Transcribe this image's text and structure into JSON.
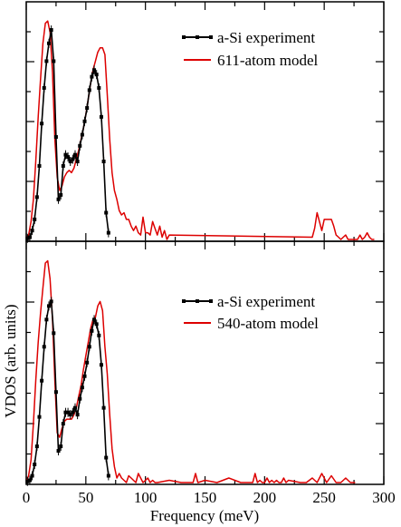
{
  "chart_data": [
    {
      "type": "line",
      "panel": "top",
      "xlabel": "",
      "ylabel": "",
      "xlim": [
        0,
        300
      ],
      "ylim": [
        0,
        1
      ],
      "xticks": [
        0,
        50,
        100,
        150,
        200,
        250,
        300
      ],
      "show_xtick_labels": false,
      "show_ytick_labels": false,
      "legend": "top-right",
      "series": [
        {
          "name": "a-Si experiment",
          "color": "#000000",
          "markers": true,
          "x": [
            1,
            3,
            5,
            7,
            9,
            11,
            13,
            15,
            17,
            19,
            21,
            23,
            25,
            27,
            29,
            31,
            33,
            35,
            37,
            39,
            41,
            43,
            45,
            47,
            49,
            51,
            53,
            55,
            57,
            59,
            61,
            63,
            65,
            67,
            69
          ],
          "y": [
            0.005,
            0.01,
            0.04,
            0.09,
            0.19,
            0.33,
            0.52,
            0.68,
            0.8,
            0.88,
            0.94,
            0.8,
            0.46,
            0.18,
            0.2,
            0.33,
            0.38,
            0.37,
            0.35,
            0.36,
            0.38,
            0.35,
            0.42,
            0.47,
            0.53,
            0.59,
            0.67,
            0.73,
            0.76,
            0.74,
            0.68,
            0.55,
            0.35,
            0.12,
            0.03
          ]
        },
        {
          "name": "611-atom model",
          "color": "#dd0000",
          "markers": false,
          "x": [
            0,
            2,
            4,
            6,
            8,
            10,
            12,
            14,
            16,
            18,
            20,
            22,
            24,
            26,
            28,
            30,
            32,
            34,
            36,
            38,
            40,
            42,
            44,
            46,
            48,
            50,
            52,
            54,
            56,
            58,
            60,
            62,
            64,
            66,
            68,
            70,
            72,
            74,
            76,
            78,
            80,
            82,
            84,
            86,
            88,
            90,
            92,
            94,
            96,
            98,
            100,
            102,
            104,
            106,
            108,
            110,
            112,
            114,
            116,
            118,
            120,
            240,
            242,
            244,
            246,
            248,
            250,
            252,
            254,
            256,
            258,
            260,
            262,
            264,
            266,
            268,
            270,
            272,
            274,
            276,
            278,
            280,
            282,
            284,
            286,
            288,
            290,
            292
          ],
          "y": [
            0.005,
            0.02,
            0.08,
            0.18,
            0.35,
            0.55,
            0.72,
            0.88,
            0.97,
            0.98,
            0.93,
            0.75,
            0.45,
            0.28,
            0.22,
            0.24,
            0.28,
            0.3,
            0.31,
            0.3,
            0.32,
            0.36,
            0.4,
            0.45,
            0.5,
            0.56,
            0.63,
            0.7,
            0.76,
            0.8,
            0.84,
            0.86,
            0.86,
            0.83,
            0.65,
            0.45,
            0.3,
            0.22,
            0.18,
            0.13,
            0.11,
            0.12,
            0.09,
            0.09,
            0.06,
            0.04,
            0.06,
            0.03,
            0.02,
            0.1,
            0.03,
            0.03,
            0.02,
            0.08,
            0.05,
            0.02,
            0.06,
            0.01,
            0.04,
            0.0,
            0.02,
            0.01,
            0.05,
            0.12,
            0.08,
            0.04,
            0.09,
            0.09,
            0.09,
            0.09,
            0.06,
            0.02,
            0.01,
            0.0,
            0.01,
            0.02,
            0.0,
            0.0,
            0.0,
            0.0,
            0.0,
            0.02,
            0.0,
            0.01,
            0.03,
            0.01,
            0.0,
            0.0
          ]
        }
      ]
    },
    {
      "type": "line",
      "panel": "bottom",
      "xlabel": "Frequency (meV)",
      "ylabel": "VDOS (arb. units)",
      "xlim": [
        0,
        300
      ],
      "ylim": [
        0,
        1
      ],
      "xticks": [
        0,
        50,
        100,
        150,
        200,
        250,
        300
      ],
      "xtick_labels": [
        "0",
        "50",
        "100",
        "150",
        "200",
        "250",
        "300"
      ],
      "show_ytick_labels": false,
      "legend": "right",
      "series": [
        {
          "name": "a-Si experiment",
          "color": "#000000",
          "markers": true,
          "x": [
            1,
            3,
            5,
            7,
            9,
            11,
            13,
            15,
            17,
            19,
            21,
            23,
            25,
            27,
            29,
            31,
            33,
            35,
            37,
            39,
            41,
            43,
            45,
            47,
            49,
            51,
            53,
            55,
            57,
            59,
            61,
            63,
            65,
            67,
            69
          ],
          "y": [
            0.005,
            0.01,
            0.03,
            0.08,
            0.16,
            0.29,
            0.45,
            0.6,
            0.72,
            0.78,
            0.8,
            0.66,
            0.4,
            0.14,
            0.16,
            0.26,
            0.31,
            0.31,
            0.3,
            0.31,
            0.33,
            0.3,
            0.37,
            0.42,
            0.47,
            0.53,
            0.6,
            0.67,
            0.72,
            0.7,
            0.65,
            0.52,
            0.33,
            0.11,
            0.03
          ]
        },
        {
          "name": "540-atom model",
          "color": "#dd0000",
          "markers": false,
          "x": [
            0,
            2,
            4,
            6,
            8,
            10,
            12,
            14,
            16,
            18,
            20,
            22,
            24,
            26,
            28,
            30,
            32,
            34,
            36,
            38,
            40,
            42,
            44,
            46,
            48,
            50,
            52,
            54,
            56,
            58,
            60,
            62,
            64,
            66,
            68,
            70,
            72,
            74,
            76,
            78,
            80,
            82,
            84,
            86,
            88,
            90,
            92,
            94,
            96,
            98,
            100,
            102,
            104,
            106,
            108,
            110,
            120,
            130,
            140,
            142,
            144,
            150,
            160,
            170,
            180,
            190,
            192,
            194,
            196,
            198,
            200,
            202,
            204,
            206,
            208,
            210,
            212,
            214,
            216,
            218,
            220,
            230,
            235,
            240,
            244,
            248,
            252,
            256,
            260,
            264,
            268,
            272,
            276
          ],
          "y": [
            0.005,
            0.03,
            0.1,
            0.26,
            0.45,
            0.62,
            0.75,
            0.86,
            0.97,
            0.98,
            0.9,
            0.72,
            0.45,
            0.22,
            0.2,
            0.24,
            0.27,
            0.28,
            0.28,
            0.28,
            0.3,
            0.33,
            0.38,
            0.43,
            0.5,
            0.56,
            0.62,
            0.68,
            0.72,
            0.73,
            0.78,
            0.8,
            0.76,
            0.6,
            0.48,
            0.3,
            0.15,
            0.07,
            0.02,
            0.04,
            0.02,
            0.01,
            0.0,
            0.03,
            0.02,
            0.01,
            0.0,
            0.04,
            0.02,
            0.0,
            0.01,
            0.02,
            0.0,
            0.01,
            0.0,
            0.0,
            0.01,
            0.0,
            0.0,
            0.04,
            0.0,
            0.01,
            0.0,
            0.02,
            0.0,
            0.0,
            0.04,
            0.0,
            0.01,
            0.0,
            0.0,
            0.02,
            0.0,
            0.01,
            0.0,
            0.01,
            0.0,
            0.0,
            0.02,
            0.0,
            0.01,
            0.0,
            0.0,
            0.02,
            0.0,
            0.04,
            0.0,
            0.03,
            0.0,
            0.0,
            0.02,
            0.0,
            0.0
          ]
        }
      ]
    }
  ]
}
